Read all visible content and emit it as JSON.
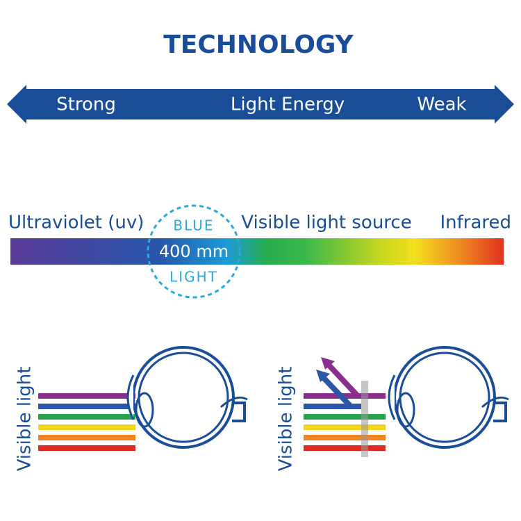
{
  "header": {
    "title": "TECHNOLOGY"
  },
  "energy_arrow": {
    "left": "Strong",
    "center": "Light Energy",
    "right": "Weak"
  },
  "spectrum": {
    "left": "Ultraviolet (uv)",
    "center": "Visible light source",
    "right": "Infrared"
  },
  "badge": {
    "top": "BLUE",
    "middle": "400 mm",
    "bottom": "LIGHT"
  },
  "eyes": [
    {
      "label": "Visible light"
    },
    {
      "label": "Visible light"
    }
  ]
}
